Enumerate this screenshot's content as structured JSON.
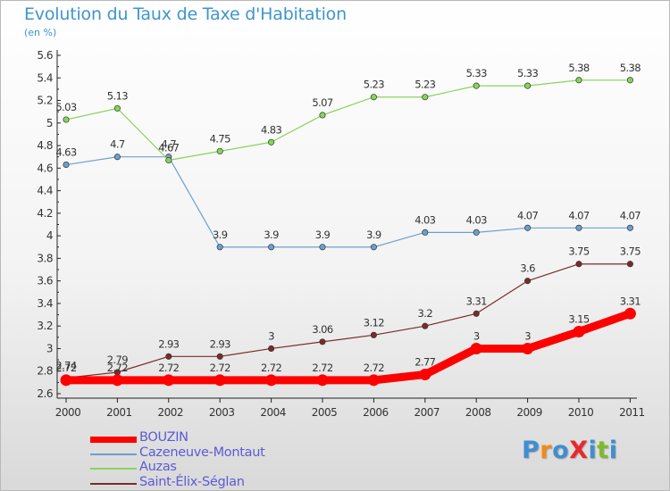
{
  "title": "Evolution du Taux de Taxe d'Habitation",
  "unit": "(en %)",
  "logo": {
    "text": "ProXiti",
    "letters": [
      {
        "ch": "P",
        "color": "#3f8fd0"
      },
      {
        "ch": "r",
        "color": "#f28a1c"
      },
      {
        "ch": "o",
        "color": "#3f8fd0"
      },
      {
        "ch": "X",
        "color": "#e8282b"
      },
      {
        "ch": "i",
        "color": "#3f8fd0"
      },
      {
        "ch": "t",
        "color": "#7dbb2a"
      },
      {
        "ch": "i",
        "color": "#3f8fd0"
      }
    ]
  },
  "chart_data": {
    "type": "line",
    "title": "Evolution du Taux de Taxe d'Habitation",
    "ylabel": "(en %)",
    "x": [
      "2000",
      "2001",
      "2002",
      "2003",
      "2004",
      "2005",
      "2006",
      "2007",
      "2008",
      "2009",
      "2010",
      "2011"
    ],
    "ylim": [
      2.6,
      5.6
    ],
    "yticks": [
      "2.6",
      "2.8",
      "3",
      "3.2",
      "3.4",
      "3.6",
      "3.8",
      "4",
      "4.2",
      "4.4",
      "4.6",
      "4.8",
      "5",
      "5.2",
      "5.4",
      "5.6"
    ],
    "grid": false,
    "legend_position": "bottom-left",
    "series": [
      {
        "name": "BOUZIN",
        "color": "#ff0000",
        "values": [
          2.72,
          2.72,
          2.72,
          2.72,
          2.72,
          2.72,
          2.72,
          2.77,
          3.0,
          3.0,
          3.15,
          3.31
        ],
        "labels": [
          "2.72",
          "2.72",
          "2.72",
          "2.72",
          "2.72",
          "2.72",
          "2.72",
          "2.77",
          "3",
          "3",
          "3.15",
          "3.31"
        ]
      },
      {
        "name": "Cazeneuve-Montaut",
        "color": "#6c9fd0",
        "values": [
          4.63,
          4.7,
          4.7,
          3.9,
          3.9,
          3.9,
          3.9,
          4.03,
          4.03,
          4.07,
          4.07,
          4.07
        ],
        "labels": [
          "4.63",
          "4.7",
          "4.7",
          "3.9",
          "3.9",
          "3.9",
          "3.9",
          "4.03",
          "4.03",
          "4.07",
          "4.07",
          "4.07"
        ]
      },
      {
        "name": "Auzas",
        "color": "#88d45a",
        "values": [
          5.03,
          5.13,
          4.67,
          4.75,
          4.83,
          5.07,
          5.23,
          5.23,
          5.33,
          5.33,
          5.38,
          5.38
        ],
        "labels": [
          "5.03",
          "5.13",
          "4.67",
          "4.75",
          "4.83",
          "5.07",
          "5.23",
          "5.23",
          "5.33",
          "5.33",
          "5.38",
          "5.38"
        ]
      },
      {
        "name": "Saint-Élix-Séglan",
        "color": "#7a2b2b",
        "values": [
          2.74,
          2.79,
          2.93,
          2.93,
          3.0,
          3.06,
          3.12,
          3.2,
          3.31,
          3.6,
          3.75,
          3.75
        ],
        "labels": [
          "2.74",
          "2.79",
          "2.93",
          "2.93",
          "3",
          "3.06",
          "3.12",
          "3.2",
          "3.31",
          "3.6",
          "3.75",
          "3.75"
        ]
      }
    ]
  }
}
